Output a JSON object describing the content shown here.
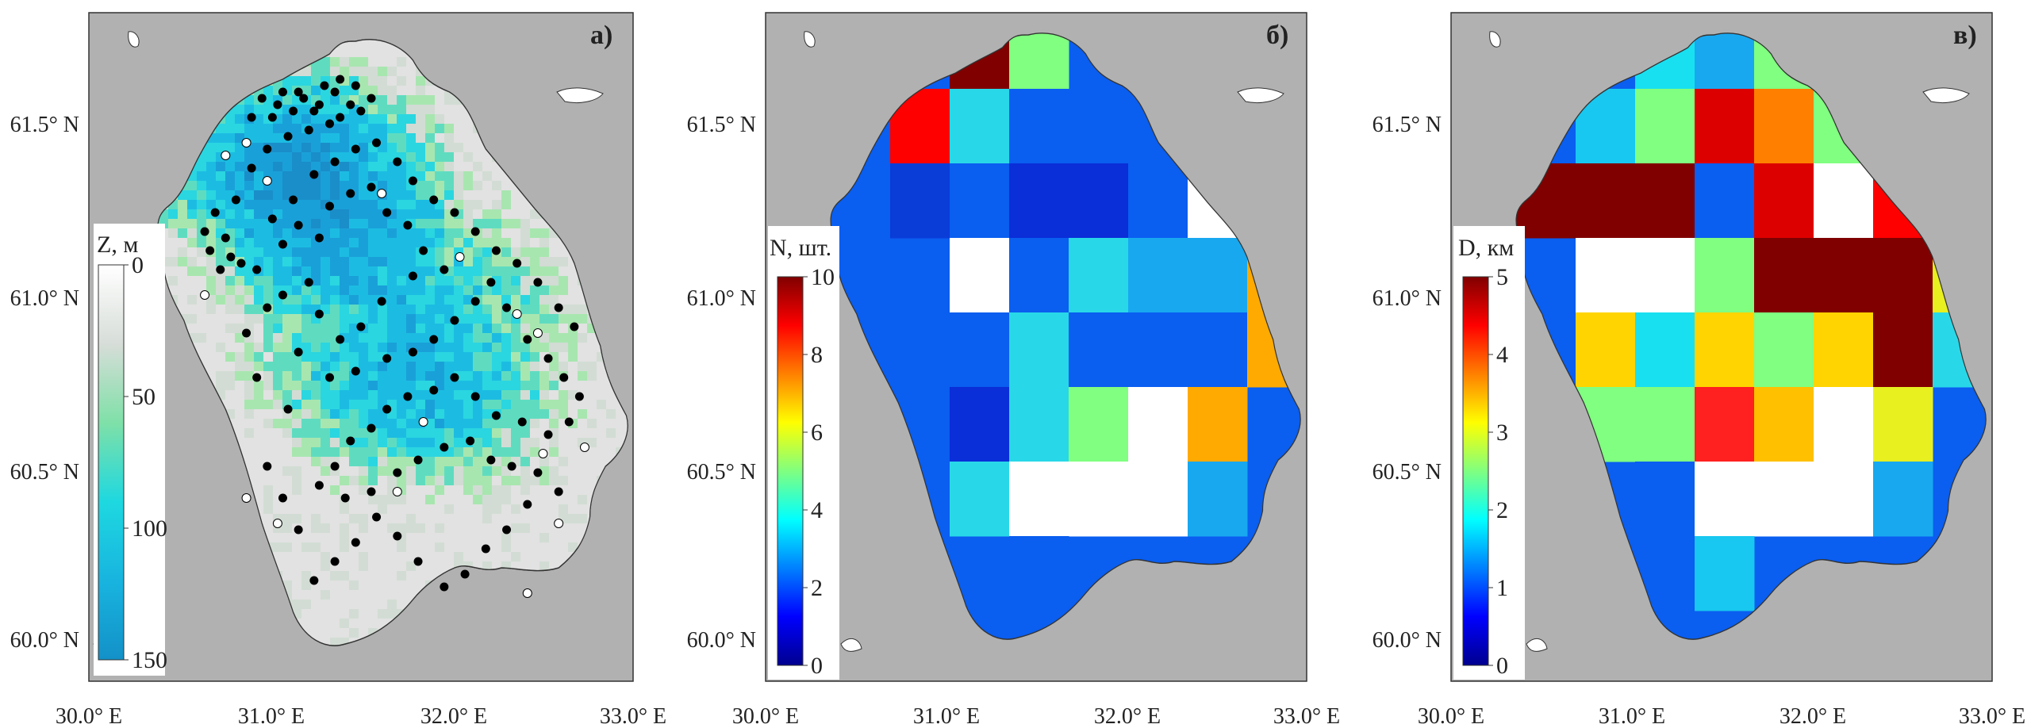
{
  "panels": [
    {
      "id": "a",
      "letter": "а)",
      "colorbar": {
        "title": "Z, м",
        "ticks": [
          "0",
          "50",
          "100",
          "150"
        ],
        "colors": [
          "#ffffff",
          "#d7ddd8",
          "#7fe0a8",
          "#1ed8e0",
          "#18b4df",
          "#1391c8"
        ]
      }
    },
    {
      "id": "b",
      "letter": "б)",
      "colorbar": {
        "title": "N, шт.",
        "ticks": [
          "0",
          "2",
          "4",
          "6",
          "8",
          "10"
        ],
        "colors": [
          "#00008f",
          "#0000ff",
          "#0080ff",
          "#00ffff",
          "#80ff80",
          "#ffff00",
          "#ff8000",
          "#ff0000",
          "#800000"
        ]
      }
    },
    {
      "id": "c",
      "letter": "в)",
      "colorbar": {
        "title": "D, км",
        "ticks": [
          "0",
          "1",
          "2",
          "3",
          "4",
          "5"
        ],
        "colors": [
          "#00008f",
          "#0000ff",
          "#0080ff",
          "#00ffff",
          "#80ff80",
          "#ffff00",
          "#ff8000",
          "#ff0000",
          "#800000"
        ]
      }
    }
  ],
  "axes": {
    "lat_ticks": [
      "61.5° N",
      "61.0° N",
      "60.5° N",
      "60.0° N"
    ],
    "lon_ticks": [
      "30.0° E",
      "31.0° E",
      "32.0° E",
      "33.0° E"
    ],
    "lat_values": [
      61.5,
      61.0,
      60.5,
      60.0
    ],
    "lon_values": [
      30.0,
      31.0,
      32.0,
      33.0
    ]
  },
  "colors": {
    "land": "#b1b1b1",
    "lake_shallow": "#dcdcdc",
    "deep": "#1a9fd6"
  },
  "grid_cells_b": [
    [
      null,
      null,
      null,
      "#800000",
      "#80ff80",
      null,
      null,
      null,
      null
    ],
    [
      null,
      null,
      "#ff0000",
      "#28d8e8",
      "#0a5ef0",
      "#0a5ef0",
      "#0a5ef0",
      null,
      null
    ],
    [
      null,
      null,
      "#0a3cd8",
      "#0a5ef0",
      "#0a2ed8",
      "#0a2ed8",
      "#0a5ef0",
      "#ffffff",
      "#ffaa00"
    ],
    [
      null,
      null,
      null,
      "#ffffff",
      "#0a5ef0",
      "#28d8e8",
      "#18a8f0",
      "#18a8f0",
      "#ffaa00"
    ],
    [
      null,
      null,
      null,
      "#0a5ef0",
      "#28d8e8",
      "#0a5ef0",
      "#0a5ef0",
      "#0a5ef0",
      "#ffaa00"
    ],
    [
      null,
      null,
      null,
      "#0a2ed8",
      "#28d8e8",
      "#80ff80",
      "#ffffff",
      "#ffaa00",
      null
    ],
    [
      null,
      null,
      null,
      "#28d8e8",
      "#ffffff",
      "#ffffff",
      "#ffffff",
      "#18a8f0",
      null
    ],
    [
      null,
      null,
      null,
      null,
      "#0a5ef0",
      null,
      null,
      null,
      null
    ]
  ],
  "grid_cells_c": [
    [
      null,
      null,
      null,
      "#18e0f0",
      "#18a8f0",
      "#80ff80",
      null,
      null,
      null
    ],
    [
      null,
      null,
      "#18c8f0",
      "#80ff80",
      "#dd0000",
      "#ff8000",
      "#80ff80",
      "#0a2ed8",
      null
    ],
    [
      null,
      "#800000",
      "#800000",
      "#800000",
      "#0a5ef0",
      "#dd0000",
      "#ffffff",
      "#ff0000",
      null
    ],
    [
      null,
      null,
      "#ffffff",
      "#ffffff",
      "#80ff80",
      "#800000",
      "#800000",
      "#800000",
      "#e8f020"
    ],
    [
      null,
      null,
      "#ffd400",
      "#18e0f0",
      "#ffd400",
      "#80ff80",
      "#ffd400",
      "#800000",
      "#28d8e8"
    ],
    [
      null,
      null,
      "#80ff80",
      "#80ff80",
      "#ff2020",
      "#ffc000",
      "#ffffff",
      "#e8f020",
      null
    ],
    [
      null,
      null,
      null,
      "#0a5ef0",
      "#ffffff",
      "#ffffff",
      "#ffffff",
      "#18a8f0",
      null
    ],
    [
      null,
      null,
      null,
      null,
      "#18c8f0",
      null,
      null,
      null,
      null
    ]
  ],
  "stations": [
    [
      0.32,
      0.12
    ],
    [
      0.36,
      0.1
    ],
    [
      0.4,
      0.12
    ],
    [
      0.42,
      0.15
    ],
    [
      0.44,
      0.14
    ],
    [
      0.46,
      0.12
    ],
    [
      0.48,
      0.13
    ],
    [
      0.5,
      0.11
    ],
    [
      0.38,
      0.16
    ],
    [
      0.34,
      0.17
    ],
    [
      0.3,
      0.19
    ],
    [
      0.27,
      0.22
    ],
    [
      0.24,
      0.27
    ],
    [
      0.2,
      0.29
    ],
    [
      0.18,
      0.32
    ],
    [
      0.22,
      0.33
    ],
    [
      0.19,
      0.35
    ],
    [
      0.23,
      0.36
    ],
    [
      0.25,
      0.37
    ],
    [
      0.21,
      0.38
    ],
    [
      0.28,
      0.38
    ],
    [
      0.33,
      0.34
    ],
    [
      0.36,
      0.31
    ],
    [
      0.4,
      0.33
    ],
    [
      0.42,
      0.28
    ],
    [
      0.46,
      0.26
    ],
    [
      0.5,
      0.25
    ],
    [
      0.53,
      0.29
    ],
    [
      0.57,
      0.31
    ],
    [
      0.6,
      0.35
    ],
    [
      0.64,
      0.38
    ],
    [
      0.58,
      0.39
    ],
    [
      0.52,
      0.43
    ],
    [
      0.48,
      0.47
    ],
    [
      0.44,
      0.49
    ],
    [
      0.4,
      0.45
    ],
    [
      0.38,
      0.4
    ],
    [
      0.33,
      0.42
    ],
    [
      0.3,
      0.44
    ],
    [
      0.36,
      0.51
    ],
    [
      0.42,
      0.55
    ],
    [
      0.47,
      0.54
    ],
    [
      0.53,
      0.52
    ],
    [
      0.58,
      0.51
    ],
    [
      0.62,
      0.49
    ],
    [
      0.66,
      0.46
    ],
    [
      0.7,
      0.43
    ],
    [
      0.73,
      0.4
    ],
    [
      0.76,
      0.44
    ],
    [
      0.8,
      0.49
    ],
    [
      0.84,
      0.52
    ],
    [
      0.87,
      0.55
    ],
    [
      0.9,
      0.58
    ],
    [
      0.88,
      0.62
    ],
    [
      0.84,
      0.64
    ],
    [
      0.79,
      0.62
    ],
    [
      0.74,
      0.61
    ],
    [
      0.7,
      0.58
    ],
    [
      0.66,
      0.55
    ],
    [
      0.62,
      0.57
    ],
    [
      0.57,
      0.58
    ],
    [
      0.53,
      0.6
    ],
    [
      0.5,
      0.63
    ],
    [
      0.46,
      0.65
    ],
    [
      0.43,
      0.69
    ],
    [
      0.4,
      0.72
    ],
    [
      0.45,
      0.74
    ],
    [
      0.5,
      0.73
    ],
    [
      0.55,
      0.7
    ],
    [
      0.59,
      0.68
    ],
    [
      0.64,
      0.66
    ],
    [
      0.69,
      0.65
    ],
    [
      0.73,
      0.68
    ],
    [
      0.77,
      0.69
    ],
    [
      0.82,
      0.7
    ],
    [
      0.86,
      0.73
    ],
    [
      0.8,
      0.75
    ],
    [
      0.76,
      0.79
    ],
    [
      0.72,
      0.82
    ],
    [
      0.68,
      0.86
    ],
    [
      0.64,
      0.88
    ],
    [
      0.59,
      0.84
    ],
    [
      0.55,
      0.8
    ],
    [
      0.51,
      0.77
    ],
    [
      0.47,
      0.81
    ],
    [
      0.43,
      0.84
    ],
    [
      0.39,
      0.87
    ],
    [
      0.36,
      0.79
    ],
    [
      0.33,
      0.74
    ],
    [
      0.3,
      0.69
    ],
    [
      0.34,
      0.6
    ],
    [
      0.28,
      0.55
    ],
    [
      0.26,
      0.48
    ],
    [
      0.31,
      0.3
    ],
    [
      0.35,
      0.27
    ],
    [
      0.39,
      0.23
    ],
    [
      0.43,
      0.21
    ],
    [
      0.47,
      0.19
    ],
    [
      0.51,
      0.18
    ],
    [
      0.55,
      0.21
    ],
    [
      0.58,
      0.24
    ],
    [
      0.62,
      0.27
    ],
    [
      0.66,
      0.29
    ],
    [
      0.7,
      0.32
    ],
    [
      0.74,
      0.35
    ],
    [
      0.78,
      0.37
    ],
    [
      0.82,
      0.4
    ],
    [
      0.86,
      0.44
    ],
    [
      0.89,
      0.47
    ],
    [
      0.27,
      0.14
    ],
    [
      0.31,
      0.14
    ],
    [
      0.35,
      0.13
    ],
    [
      0.39,
      0.13
    ],
    [
      0.43,
      0.1
    ],
    [
      0.47,
      0.09
    ],
    [
      0.44,
      0.08
    ],
    [
      0.41,
      0.09
    ],
    [
      0.37,
      0.11
    ],
    [
      0.33,
      0.1
    ],
    [
      0.29,
      0.11
    ]
  ],
  "stations_white": [
    [
      0.22,
      0.2
    ],
    [
      0.26,
      0.18
    ],
    [
      0.3,
      0.24
    ],
    [
      0.18,
      0.42
    ],
    [
      0.52,
      0.26
    ],
    [
      0.67,
      0.36
    ],
    [
      0.78,
      0.45
    ],
    [
      0.82,
      0.48
    ],
    [
      0.55,
      0.73
    ],
    [
      0.6,
      0.62
    ],
    [
      0.83,
      0.67
    ],
    [
      0.86,
      0.78
    ],
    [
      0.91,
      0.66
    ],
    [
      0.26,
      0.74
    ],
    [
      0.32,
      0.78
    ],
    [
      0.8,
      0.89
    ]
  ]
}
